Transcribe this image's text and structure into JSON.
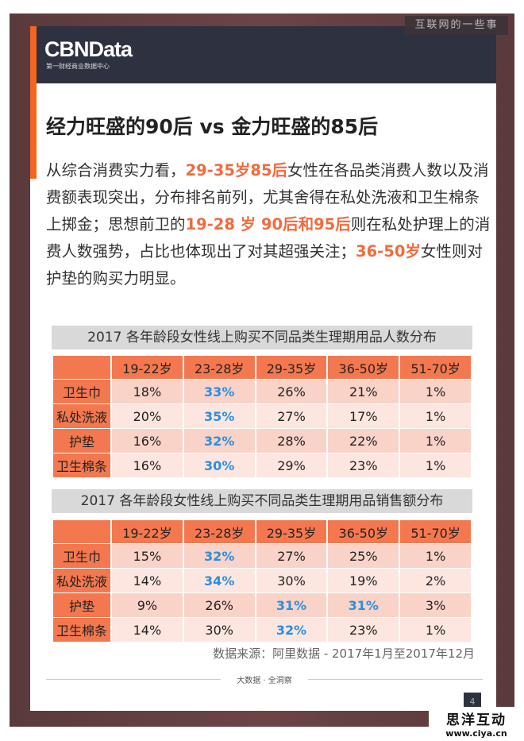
{
  "watermark": "互联网的一些事",
  "logo": {
    "name": "CBNData",
    "subtitle": "第一财经商业数据中心"
  },
  "title": "经力旺盛的90后 vs 金力旺盛的85后",
  "paragraph": [
    {
      "t": "从综合消费实力看，",
      "h": false
    },
    {
      "t": "29-35岁85后",
      "h": true
    },
    {
      "t": "女性在各品类消费人数以及消费额表现突出，分布排名前列，尤其舍得在私处洗液和卫生棉条上掷金；思想前卫的",
      "h": false
    },
    {
      "t": "19-28 岁 90后和95后",
      "h": true
    },
    {
      "t": "则在私处护理上的消费人数强势，占比也体现出了对其超强关注；",
      "h": false
    },
    {
      "t": "36-50岁",
      "h": true
    },
    {
      "t": "女性则对护垫的购买力明显。",
      "h": false
    }
  ],
  "colors": {
    "accent": "#f26522",
    "highlight_text": "#f26a3d",
    "blue_value": "#2a8fe0",
    "header_bg": "#2e3140"
  },
  "tables": [
    {
      "title": "2017 各年龄段女性线上购买不同品类生理期用品人数分布",
      "columns": [
        "19-22岁",
        "23-28岁",
        "29-35岁",
        "36-50岁",
        "51-70岁"
      ],
      "rows": [
        {
          "label": "卫生巾",
          "values": [
            "18%",
            "33%",
            "26%",
            "21%",
            "1%"
          ],
          "bold": [
            false,
            true,
            false,
            false,
            false
          ]
        },
        {
          "label": "私处洗液",
          "values": [
            "20%",
            "35%",
            "27%",
            "17%",
            "1%"
          ],
          "bold": [
            false,
            true,
            false,
            false,
            false
          ]
        },
        {
          "label": "护垫",
          "values": [
            "16%",
            "32%",
            "28%",
            "22%",
            "1%"
          ],
          "bold": [
            false,
            true,
            false,
            false,
            false
          ]
        },
        {
          "label": "卫生棉条",
          "values": [
            "16%",
            "30%",
            "29%",
            "23%",
            "1%"
          ],
          "bold": [
            false,
            true,
            false,
            false,
            false
          ]
        }
      ]
    },
    {
      "title": "2017 各年龄段女性线上购买不同品类生理期用品销售额分布",
      "columns": [
        "19-22岁",
        "23-28岁",
        "29-35岁",
        "36-50岁",
        "51-70岁"
      ],
      "rows": [
        {
          "label": "卫生巾",
          "values": [
            "15%",
            "32%",
            "27%",
            "25%",
            "1%"
          ],
          "bold": [
            false,
            true,
            false,
            false,
            false
          ]
        },
        {
          "label": "私处洗液",
          "values": [
            "14%",
            "34%",
            "30%",
            "19%",
            "2%"
          ],
          "bold": [
            false,
            true,
            false,
            false,
            false
          ]
        },
        {
          "label": "护垫",
          "values": [
            "9%",
            "26%",
            "31%",
            "31%",
            "3%"
          ],
          "bold": [
            false,
            false,
            true,
            true,
            false
          ]
        },
        {
          "label": "卫生棉条",
          "values": [
            "14%",
            "30%",
            "32%",
            "23%",
            "1%"
          ],
          "bold": [
            false,
            false,
            true,
            false,
            false
          ]
        }
      ]
    }
  ],
  "source": "数据来源：阿里数据 - 2017年1月至2017年12月",
  "footer": "大数据 · 全洞察",
  "page_number": "4",
  "brand": {
    "name": "思洋互动",
    "url": "www.ciya.cn"
  }
}
